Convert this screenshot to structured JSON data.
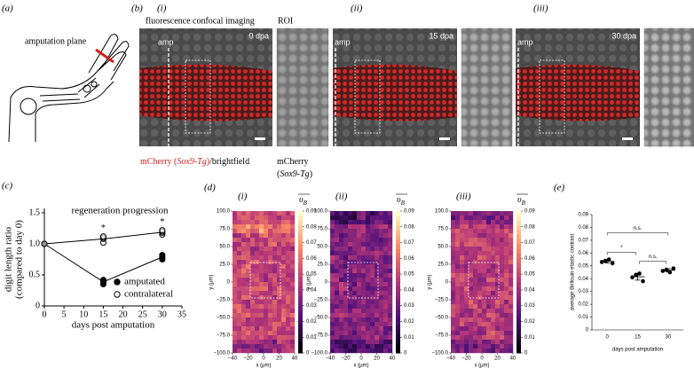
{
  "figure": {
    "a": {
      "label": "(a)",
      "annotation": "amputation plane"
    },
    "b": {
      "label": "(b)",
      "header": "fluorescence confocal imaging",
      "roi_header": "ROI",
      "amp": "amp",
      "panels": [
        {
          "label": "(i)",
          "time": "0 dpa"
        },
        {
          "label": "(ii)",
          "time": "15 dpa"
        },
        {
          "label": "(iii)",
          "time": "30 dpa"
        }
      ],
      "caption_main": [
        {
          "text": "mCherry (",
          "color": "#d42020"
        },
        {
          "text": "Sox9-Tg",
          "color": "#d42020",
          "italic": true
        },
        {
          "text": ")",
          "color": "#d42020"
        },
        {
          "text": "/brightfield"
        }
      ],
      "caption_roi": [
        [
          {
            "text": "mCherry"
          }
        ],
        [
          {
            "text": "("
          },
          {
            "text": "Sox9-Tg",
            "italic": true
          },
          {
            "text": ")"
          }
        ]
      ]
    },
    "c": {
      "label": "(c)"
    },
    "d": {
      "label": "(d)",
      "panels": [
        "(i)",
        "(ii)",
        "(iii)"
      ],
      "colorbar_symbol": "υ",
      "colorbar_subscript": "B",
      "colorbar_ticks": [
        0.09,
        0.08,
        0.07,
        0.06,
        0.05,
        0.04,
        0.03,
        0.02,
        0.01,
        0
      ],
      "yticks": [
        "100.0",
        "75.0",
        "50.0",
        "25.0",
        "0",
        "−25.0",
        "−50.0",
        "−75.0",
        "−100.0"
      ],
      "xticks": [
        "−40",
        "−20",
        "0",
        "20",
        "40"
      ],
      "xlabel": "x (μm)",
      "ylabel": "y (μm)"
    },
    "e": {
      "label": "(e)"
    }
  },
  "chart_data": [
    {
      "type": "scatter",
      "title": "regeneration progression",
      "xlabel": "days post amputation",
      "ylabel": [
        "digit length ratio",
        "(compared to day 0)"
      ],
      "xlim": [
        0,
        35
      ],
      "xticks": [
        0,
        5,
        10,
        15,
        20,
        25,
        30,
        35
      ],
      "ylim": [
        0,
        1.5
      ],
      "yticks": [
        0,
        0.5,
        {
          "value": 1,
          "label": "1.0"
        },
        1.5
      ],
      "series": [
        {
          "name": "amputated",
          "color": "#000000",
          "marker": "filled",
          "x": [
            0,
            15,
            15,
            15,
            15,
            30,
            30,
            30,
            30
          ],
          "values": [
            1,
            0.35,
            0.38,
            0.42,
            0.4,
            0.75,
            0.78,
            0.8,
            0.82
          ]
        },
        {
          "name": "contralateral",
          "color": "#000000",
          "marker": "open",
          "x": [
            0,
            15,
            15,
            15,
            15,
            30,
            30,
            30,
            30
          ],
          "values": [
            1,
            1.02,
            1.08,
            1.1,
            1.12,
            1.15,
            1.18,
            1.2,
            1.22
          ]
        }
      ],
      "annotations": [
        {
          "text": "*",
          "x": 15
        },
        {
          "text": "*",
          "x": 30
        }
      ]
    },
    {
      "type": "dot",
      "xlabel": "days post amputation",
      "ylabel": "average Brillouin elastic contrast",
      "categories": [
        "0",
        "15",
        "30"
      ],
      "values": [
        [
          0.053,
          0.054,
          0.055,
          0.052
        ],
        [
          0.041,
          0.043,
          0.044,
          0.038
        ],
        [
          0.046,
          0.047,
          0.045,
          0.048
        ]
      ],
      "color": "#000000",
      "ylim": [
        0,
        0.09
      ],
      "yticks": [
        0,
        0.01,
        0.02,
        0.03,
        0.04,
        0.05,
        0.06,
        0.07,
        0.08,
        0.09
      ],
      "annotations": [
        {
          "text": "n.s.",
          "between": [
            "0",
            "30"
          ]
        },
        {
          "text": "*",
          "between": [
            "0",
            "15"
          ]
        },
        {
          "text": "n.s.",
          "between": [
            "15",
            "30"
          ]
        }
      ]
    }
  ]
}
